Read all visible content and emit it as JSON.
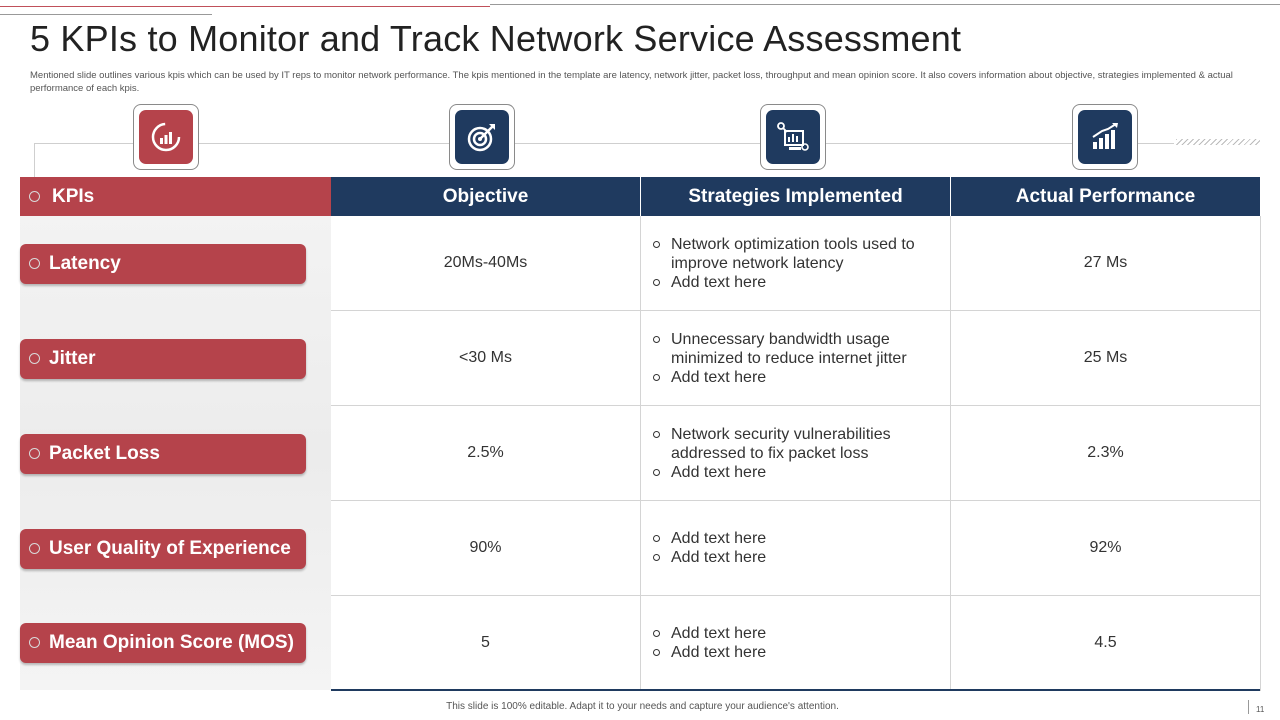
{
  "title": "5 KPIs to Monitor and Track Network Service Assessment",
  "subtitle": "Mentioned slide outlines various kpis which can be used by IT reps to monitor network performance. The kpis mentioned in the template are latency, network jitter, packet loss, throughput and mean opinion score. It also covers information about objective, strategies implemented & actual performance of each kpis.",
  "colors": {
    "red": "#b5434b",
    "navy": "#1f3a5f"
  },
  "icons": [
    "speedometer-icon",
    "target-icon",
    "network-monitor-icon",
    "growth-chart-icon"
  ],
  "headers": {
    "kpis": "KPIs",
    "objective": "Objective",
    "strategies": "Strategies Implemented",
    "actual": "Actual Performance"
  },
  "rows": [
    {
      "kpi": "Latency",
      "objective": "20Ms-40Ms",
      "strategies": [
        "Network optimization tools used to improve network latency",
        "Add text here"
      ],
      "actual": "27 Ms"
    },
    {
      "kpi": "Jitter",
      "objective": "<30 Ms",
      "strategies": [
        "Unnecessary bandwidth usage minimized to reduce internet jitter",
        "Add text here"
      ],
      "actual": "25 Ms"
    },
    {
      "kpi": "Packet Loss",
      "objective": "2.5%",
      "strategies": [
        "Network security vulnerabilities addressed to fix packet loss",
        "Add text here"
      ],
      "actual": "2.3%"
    },
    {
      "kpi": "User Quality of Experience",
      "objective": "90%",
      "strategies": [
        "Add text here",
        "Add text here"
      ],
      "actual": "92%"
    },
    {
      "kpi": "Mean Opinion Score (MOS)",
      "objective": "5",
      "strategies": [
        "Add text here",
        "Add text here"
      ],
      "actual": "4.5"
    }
  ],
  "footer": "This slide is 100% editable. Adapt it to your needs and capture your audience's attention.",
  "page_number": "11"
}
